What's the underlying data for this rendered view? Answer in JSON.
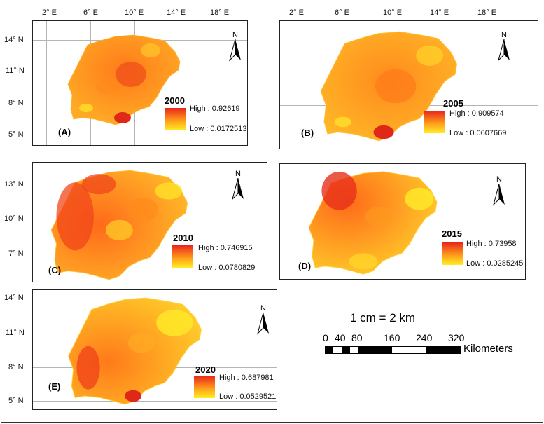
{
  "axes": {
    "lon_labels": [
      "2° E",
      "6° E",
      "10° E",
      "14° E",
      "18° E"
    ],
    "lat_a": [
      "14° N",
      "11° N",
      "8° N",
      "5° N"
    ],
    "lat_c": [
      "13° N",
      "10° N",
      "7° N"
    ],
    "lat_e": [
      "14° N",
      "11° N",
      "8° N",
      "5° N"
    ]
  },
  "north_label": "N",
  "panels": [
    {
      "id": "A",
      "label": "(A)",
      "year": "2000",
      "high": "High : 0.92619",
      "low": "Low : 0.0172513"
    },
    {
      "id": "B",
      "label": "(B)",
      "year": "2005",
      "high": "High : 0.909574",
      "low": "Low : 0.0607669"
    },
    {
      "id": "C",
      "label": "(C)",
      "year": "2010",
      "high": "High : 0.746915",
      "low": "Low : 0.0780829"
    },
    {
      "id": "D",
      "label": "(D)",
      "year": "2015",
      "high": "High : 0.73958",
      "low": "Low : 0.0285245"
    },
    {
      "id": "E",
      "label": "(E)",
      "year": "2020",
      "high": "High : 0.687981",
      "low": "Low : 0.0529521"
    }
  ],
  "scale": {
    "title": "1 cm = 2 km",
    "ticks": [
      "0",
      "40",
      "80",
      "160",
      "240",
      "320"
    ],
    "unit": "Kilometers"
  },
  "colors": {
    "high": "#e8251c",
    "mid": "#ff9a1a",
    "low": "#ffee22"
  }
}
